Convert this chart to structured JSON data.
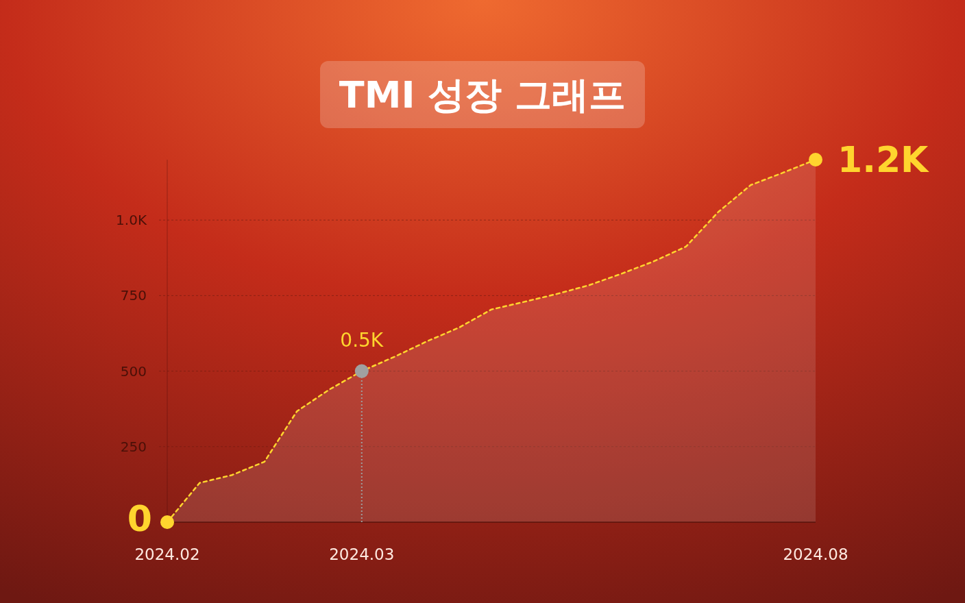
{
  "chart_data": {
    "type": "area",
    "title": "TMI 성장 그래프",
    "categories": [
      "2024.02",
      null,
      null,
      null,
      null,
      null,
      "2024.03",
      null,
      null,
      null,
      null,
      null,
      null,
      null,
      null,
      null,
      null,
      null,
      null,
      null,
      "2024.08"
    ],
    "series": [
      {
        "color": "#ffd52e",
        "values": [
          0,
          130,
          156,
          200,
          367,
          439,
          500,
          547,
          598,
          644,
          704,
          729,
          755,
          784,
          822,
          863,
          912,
          1027,
          1116,
          1157,
          1200
        ]
      }
    ],
    "ylim": [
      0,
      1200
    ],
    "yticks": [
      250,
      500,
      750,
      {
        "value": 1000,
        "label": "1.0K"
      }
    ],
    "grid": "y",
    "line_style": "dashed",
    "marker": "none",
    "annotations": [
      {
        "text": "0",
        "x": "2024.02",
        "y": 0
      },
      {
        "text": "0.5K",
        "x": "2024.03",
        "y": 500
      },
      {
        "text": "1.2K",
        "x": "2024.08",
        "y": 1200
      }
    ],
    "ref_lines": [
      {
        "axis": "x",
        "value": "2024.03",
        "color": "#9e9e9e",
        "line_style": "dotted"
      }
    ]
  }
}
